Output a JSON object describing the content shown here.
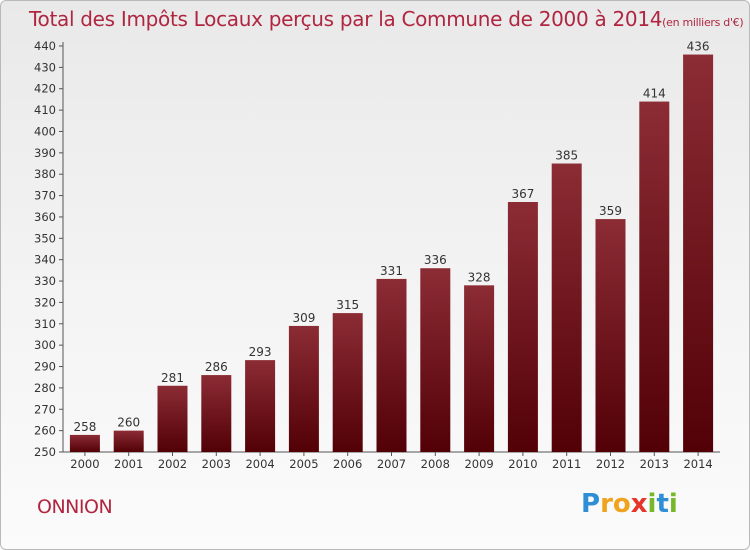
{
  "chart_data": {
    "type": "bar",
    "title": "Total des Impôts Locaux perçus par la Commune de 2000 à 2014",
    "unit_label": "(en milliers d'€)",
    "categories": [
      "2000",
      "2001",
      "2002",
      "2003",
      "2004",
      "2005",
      "2006",
      "2007",
      "2008",
      "2009",
      "2010",
      "2011",
      "2012",
      "2013",
      "2014"
    ],
    "values": [
      258,
      260,
      281,
      286,
      293,
      309,
      315,
      331,
      336,
      328,
      367,
      385,
      359,
      414,
      436
    ],
    "xlabel": "",
    "ylabel": "",
    "ylim": [
      250,
      440
    ],
    "ytick_step": 10,
    "grid": false,
    "bar_color": "#7a1a22"
  },
  "footer": {
    "commune": "ONNION",
    "logo": "Proxiti"
  }
}
